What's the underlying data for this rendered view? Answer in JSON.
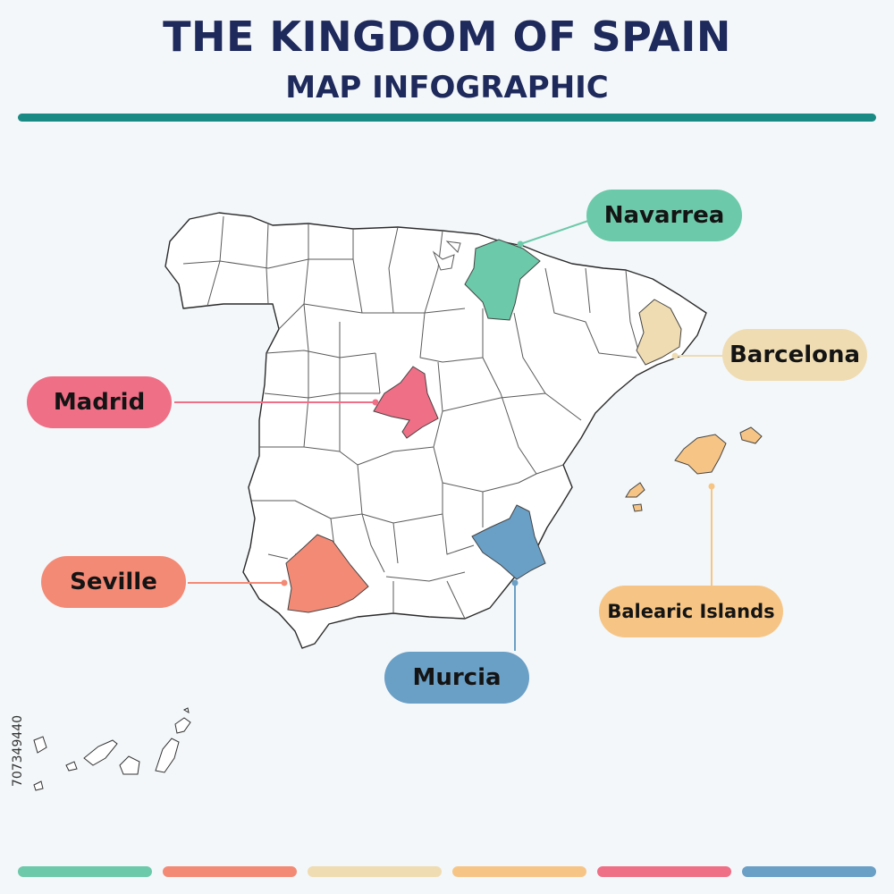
{
  "header": {
    "title": "THE KINGDOM OF SPAIN",
    "subtitle": "MAP INFOGRAPHIC"
  },
  "colors": {
    "title": "#1f2a5c",
    "rule": "#1a8a84",
    "navarra": "#6cc9a9",
    "barcelona": "#efdcb2",
    "madrid": "#ee6f86",
    "seville": "#f38a76",
    "murcia": "#6a9fc6",
    "balearic": "#f6c586"
  },
  "callouts": {
    "navarrea": "Navarrea",
    "barcelona": "Barcelona",
    "madrid": "Madrid",
    "seville": "Seville",
    "murcia": "Murcia",
    "balearic": "Balearic Islands"
  },
  "stock_id": "707349440",
  "bottom_bar_colors": [
    "#6cc9a9",
    "#f38a76",
    "#efdcb2",
    "#f6c586",
    "#ee6f86",
    "#6a9fc6"
  ]
}
